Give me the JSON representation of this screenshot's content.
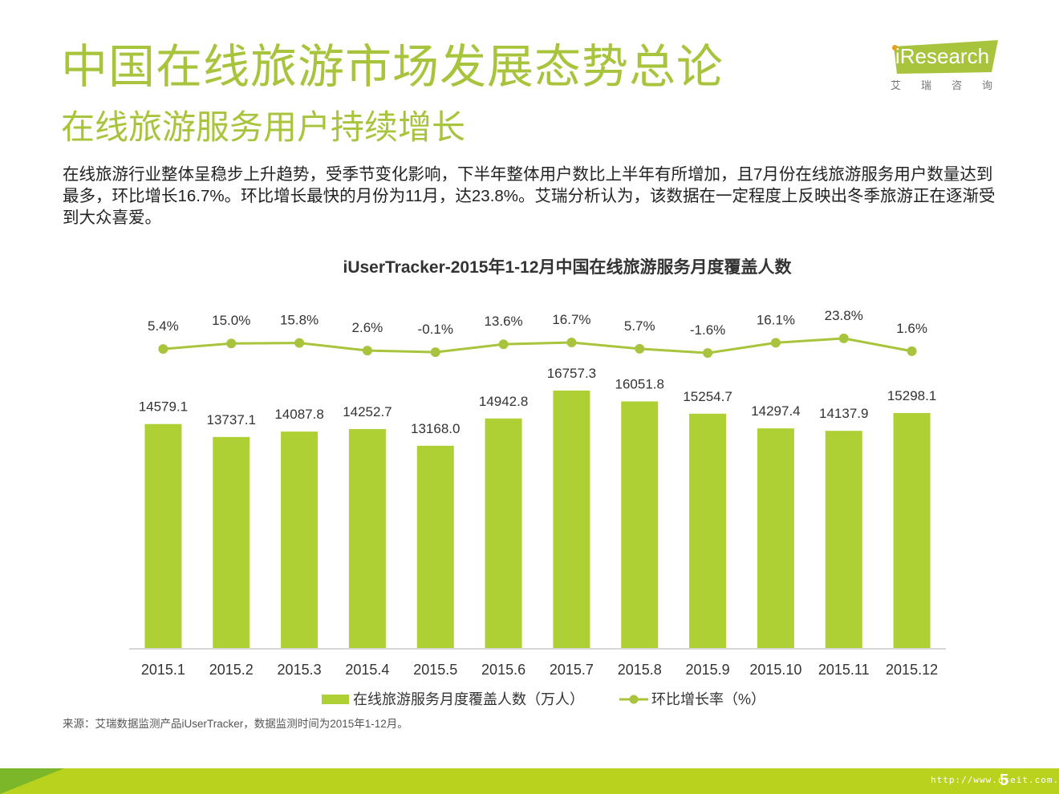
{
  "header": {
    "title": "中国在线旅游市场发展态势总论",
    "subtitle": "在线旅游服务用户持续增长",
    "summary": "在线旅游行业整体呈稳步上升趋势，受季节变化影响，下半年整体用户数比上半年有所增加，且7月份在线旅游服务用户数量达到最多，环比增长16.7%。环比增长最快的月份为11月，达23.8%。艾瑞分析认为，该数据在一定程度上反映出冬季旅游正在逐渐受到大众喜爱。"
  },
  "logo": {
    "brand": "iResearch",
    "cn": "艾瑞咨询"
  },
  "colors": {
    "accent": "#a8c43c",
    "bar": "#aed035",
    "line": "#a8c43c",
    "footer": "#b9d21e"
  },
  "chart_data": {
    "type": "bar",
    "title": "iUserTracker-2015年1-12月中国在线旅游服务月度覆盖人数",
    "categories": [
      "2015.1",
      "2015.2",
      "2015.3",
      "2015.4",
      "2015.5",
      "2015.6",
      "2015.7",
      "2015.8",
      "2015.9",
      "2015.10",
      "2015.11",
      "2015.12"
    ],
    "series": [
      {
        "name": "在线旅游服务月度覆盖人数（万人）",
        "type": "bar",
        "values": [
          14579.1,
          13737.1,
          14087.8,
          14252.7,
          13168.0,
          14942.8,
          16757.3,
          16051.8,
          15254.7,
          14297.4,
          14137.9,
          15298.1
        ],
        "labels": [
          "14579.1",
          "13737.1",
          "14087.8",
          "14252.7",
          "13168.0",
          "14942.8",
          "16757.3",
          "16051.8",
          "15254.7",
          "14297.4",
          "14137.9",
          "15298.1"
        ]
      },
      {
        "name": "环比增长率（%）",
        "type": "line",
        "values": [
          5.4,
          15.0,
          15.8,
          2.6,
          -0.1,
          13.6,
          16.7,
          5.7,
          -1.6,
          16.1,
          23.8,
          1.6
        ],
        "labels": [
          "5.4%",
          "15.0%",
          "15.8%",
          "2.6%",
          "-0.1%",
          "13.6%",
          "16.7%",
          "5.7%",
          "-1.6%",
          "16.1%",
          "23.8%",
          "1.6%"
        ]
      }
    ],
    "legend": [
      "在线旅游服务月度覆盖人数（万人）",
      "环比增长率（%）"
    ]
  },
  "source": "来源：艾瑞数据监测产品iUserTracker，数据监测时间为2015年1-12月。",
  "footer": {
    "url": "http://www.useit.com.cn",
    "page": "5"
  }
}
